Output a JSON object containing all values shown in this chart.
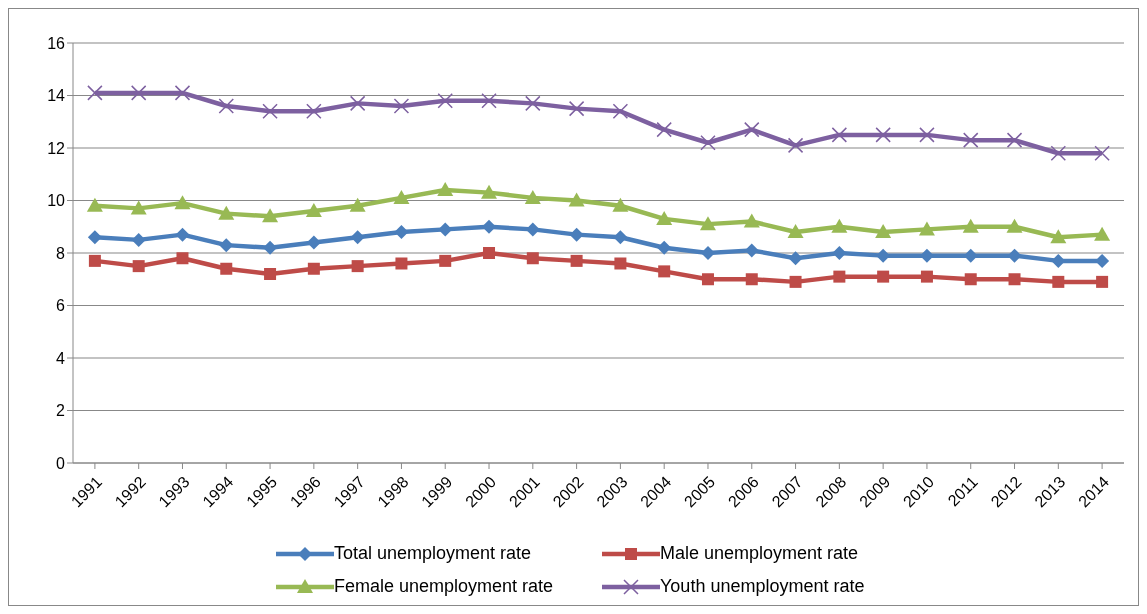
{
  "chart_data": {
    "type": "line",
    "categories": [
      "1991",
      "1992",
      "1993",
      "1994",
      "1995",
      "1996",
      "1997",
      "1998",
      "1999",
      "2000",
      "2001",
      "2002",
      "2003",
      "2004",
      "2005",
      "2006",
      "2007",
      "2008",
      "2009",
      "2010",
      "2011",
      "2012",
      "2013",
      "2014"
    ],
    "series": [
      {
        "name": "Total unemployment rate",
        "color": "#4a7ebb",
        "marker": "diamond",
        "values": [
          8.6,
          8.5,
          8.7,
          8.3,
          8.2,
          8.4,
          8.6,
          8.8,
          8.9,
          9.0,
          8.9,
          8.7,
          8.6,
          8.2,
          8.0,
          8.1,
          7.8,
          8.0,
          7.9,
          7.9,
          7.9,
          7.9,
          7.7,
          7.7
        ]
      },
      {
        "name": "Male unemployment rate",
        "color": "#be4b48",
        "marker": "square",
        "values": [
          7.7,
          7.5,
          7.8,
          7.4,
          7.2,
          7.4,
          7.5,
          7.6,
          7.7,
          8.0,
          7.8,
          7.7,
          7.6,
          7.3,
          7.0,
          7.0,
          6.9,
          7.1,
          7.1,
          7.1,
          7.0,
          7.0,
          6.9,
          6.9
        ]
      },
      {
        "name": "Female unemployment rate",
        "color": "#98b954",
        "marker": "triangle",
        "values": [
          9.8,
          9.7,
          9.9,
          9.5,
          9.4,
          9.6,
          9.8,
          10.1,
          10.4,
          10.3,
          10.1,
          10.0,
          9.8,
          9.3,
          9.1,
          9.2,
          8.8,
          9.0,
          8.8,
          8.9,
          9.0,
          9.0,
          8.6,
          8.7
        ]
      },
      {
        "name": "Youth unemployment rate",
        "color": "#7d60a0",
        "marker": "cross",
        "values": [
          14.1,
          14.1,
          14.1,
          13.6,
          13.4,
          13.4,
          13.7,
          13.6,
          13.8,
          13.8,
          13.7,
          13.5,
          13.4,
          12.7,
          12.2,
          12.7,
          12.1,
          12.5,
          12.5,
          12.5,
          12.3,
          12.3,
          11.8,
          11.8
        ]
      }
    ],
    "ylim": [
      0,
      16
    ],
    "yticks": [
      0,
      2,
      4,
      6,
      8,
      10,
      12,
      14,
      16
    ],
    "grid": "y",
    "legend": "bottom",
    "line_style": "solid"
  }
}
